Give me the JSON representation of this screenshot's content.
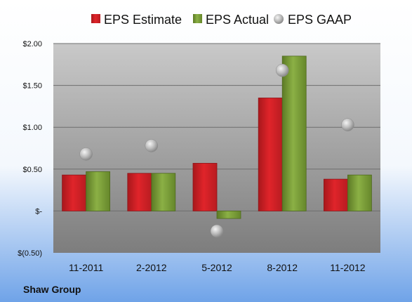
{
  "chart_data": {
    "type": "bar",
    "categories": [
      "11-2011",
      "2-2012",
      "5-2012",
      "8-2012",
      "11-2012"
    ],
    "series": [
      {
        "name": "EPS Estimate",
        "kind": "bar",
        "color": "#e0242a",
        "values": [
          0.43,
          0.45,
          0.57,
          1.35,
          0.38
        ]
      },
      {
        "name": "EPS Actual",
        "kind": "bar",
        "color": "#7fa13a",
        "values": [
          0.47,
          0.45,
          -0.09,
          1.85,
          0.43
        ]
      },
      {
        "name": "EPS GAAP",
        "kind": "marker",
        "color": "#b4b4b4",
        "values": [
          0.68,
          0.78,
          -0.24,
          1.68,
          1.03
        ]
      }
    ],
    "y_ticks": [
      "$(0.50)",
      "$-",
      "$0.50",
      "$1.00",
      "$1.50",
      "$2.00"
    ],
    "y_tick_values": [
      -0.5,
      0,
      0.5,
      1.0,
      1.5,
      2.0
    ],
    "ylim": [
      -0.5,
      2.0
    ],
    "grid": true,
    "legend": "top",
    "footer": "Shaw Group"
  },
  "colors": {
    "background_top": "#ffffff",
    "background_bottom": "#6fa3e8",
    "plot_top": "#c9c9c9",
    "plot_bottom": "#7d7d7d",
    "gridline": "#6e6e6e"
  }
}
